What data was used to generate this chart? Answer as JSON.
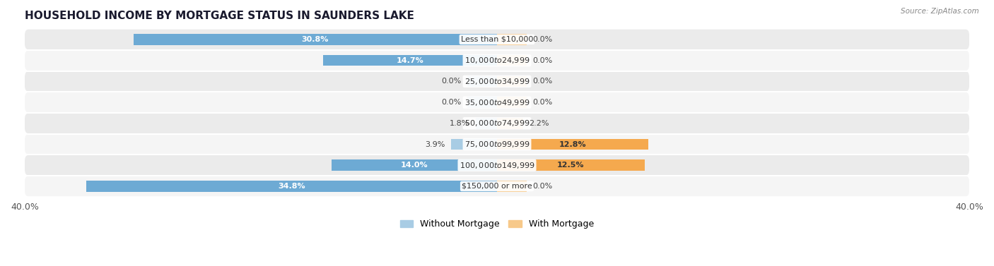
{
  "title": "HOUSEHOLD INCOME BY MORTGAGE STATUS IN SAUNDERS LAKE",
  "source": "Source: ZipAtlas.com",
  "categories": [
    "Less than $10,000",
    "$10,000 to $24,999",
    "$25,000 to $34,999",
    "$35,000 to $49,999",
    "$50,000 to $74,999",
    "$75,000 to $99,999",
    "$100,000 to $149,999",
    "$150,000 or more"
  ],
  "without_mortgage": [
    30.8,
    14.7,
    0.0,
    0.0,
    1.8,
    3.9,
    14.0,
    34.8
  ],
  "with_mortgage": [
    0.0,
    0.0,
    0.0,
    0.0,
    2.2,
    12.8,
    12.5,
    0.0
  ],
  "color_without": "#6daad4",
  "color_with": "#f5a94e",
  "color_without_light": "#a8cce4",
  "color_with_light": "#f7c98a",
  "xlim": 40.0,
  "title_fontsize": 11,
  "label_fontsize": 8,
  "value_fontsize": 8,
  "bar_height": 0.52,
  "stub_size": 2.5,
  "row_colors": [
    "#ebebeb",
    "#f5f5f5"
  ],
  "x_axis_label_left": "40.0%",
  "x_axis_label_right": "40.0%",
  "legend_without": "Without Mortgage",
  "legend_with": "With Mortgage"
}
